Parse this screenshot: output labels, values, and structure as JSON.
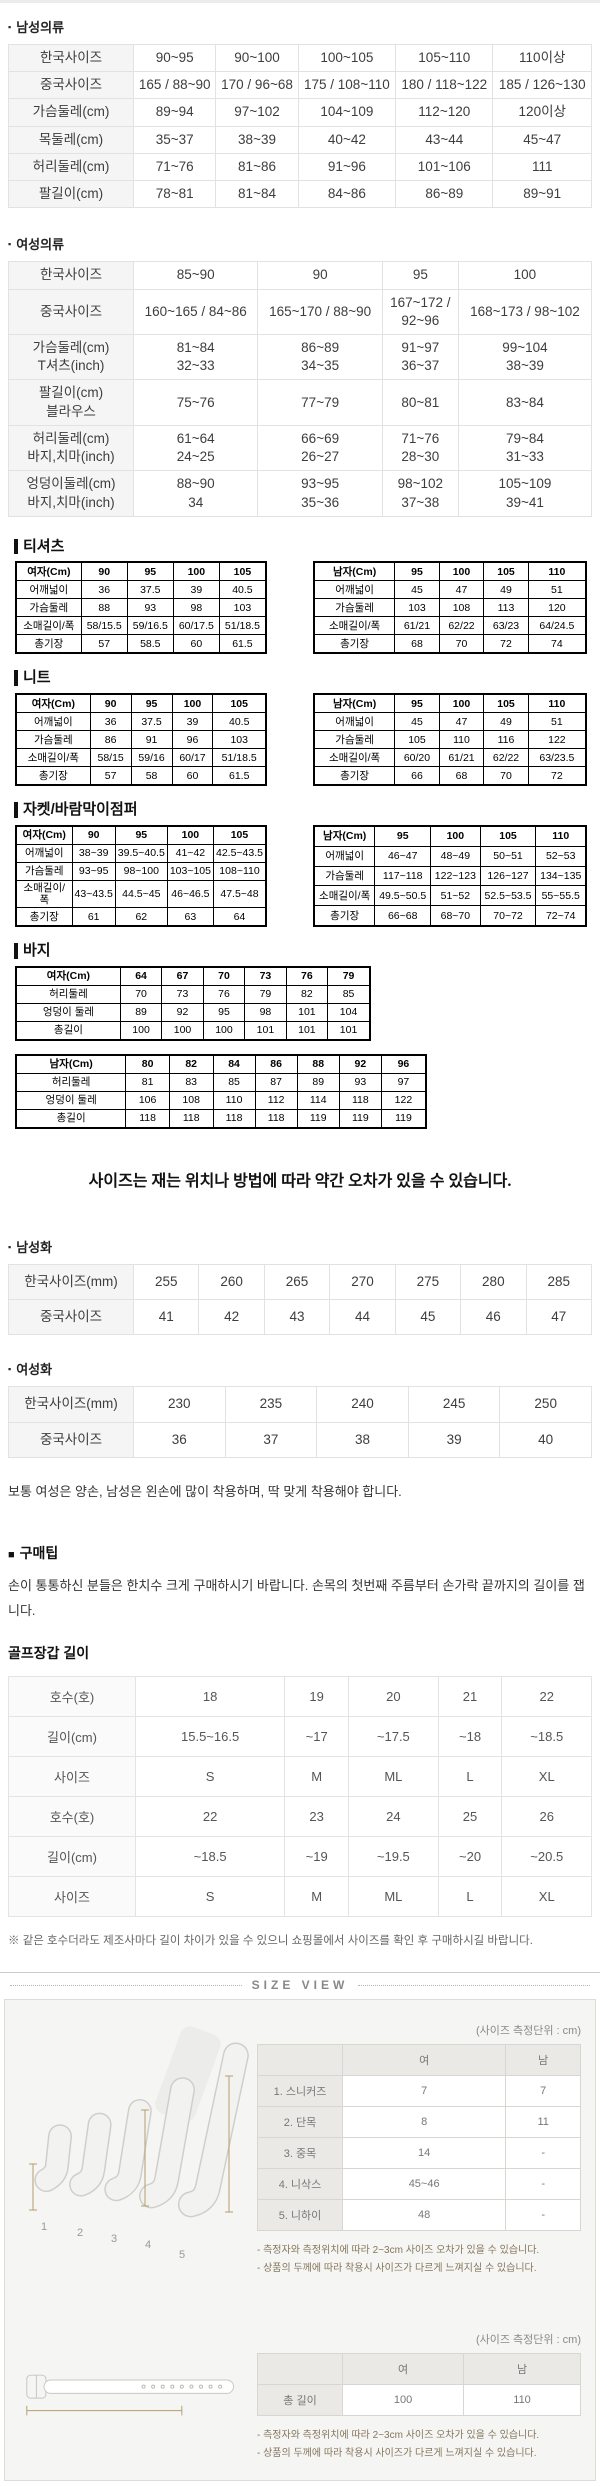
{
  "colors": {
    "accent_measure_line": "#b79d6d",
    "panel_background": "#f5f5f3",
    "label_cell_background": "#f5f5f5",
    "hard_table_border": "#000000"
  },
  "markers": {
    "bullet": "▪",
    "square": "■"
  },
  "mens_clothing": {
    "title": "남성의류",
    "table": {
      "label_col": true,
      "rows": [
        [
          "한국사이즈",
          "90~95",
          "90~100",
          "100~105",
          "105~110",
          "110이상"
        ],
        [
          "중국사이즈",
          "165 / 88~90",
          "170 / 96~68",
          "175 / 108~110",
          "180 / 118~122",
          "185 / 126~130"
        ],
        [
          "가슴둘레(cm)",
          "89~94",
          "97~102",
          "104~109",
          "112~120",
          "120이상"
        ],
        [
          "목둘레(cm)",
          "35~37",
          "38~39",
          "40~42",
          "43~44",
          "45~47"
        ],
        [
          "허리둘레(cm)",
          "71~76",
          "81~86",
          "91~96",
          "101~106",
          "111"
        ],
        [
          "팔길이(cm)",
          "78~81",
          "81~84",
          "84~86",
          "86~89",
          "89~91"
        ]
      ]
    }
  },
  "womens_clothing": {
    "title": "여성의류",
    "table": {
      "label_col": true,
      "rows": [
        [
          "한국사이즈",
          "85~90",
          "90",
          "95",
          "100"
        ],
        [
          "중국사이즈",
          "160~165 / 84~86",
          "165~170 / 88~90",
          [
            "167~172 /",
            "92~96"
          ],
          "168~173 / 98~102"
        ],
        [
          [
            "가슴둘레(cm)",
            "T셔츠(inch)"
          ],
          [
            "81~84",
            "32~33"
          ],
          [
            "86~89",
            "34~35"
          ],
          [
            "91~97",
            "36~37"
          ],
          [
            "99~104",
            "38~39"
          ]
        ],
        [
          [
            "팔길이(cm)",
            "블라우스"
          ],
          "75~76",
          "77~79",
          "80~81",
          "83~84"
        ],
        [
          [
            "허리둘레(cm)",
            "바지,치마(inch)"
          ],
          [
            "61~64",
            "24~25"
          ],
          [
            "66~69",
            "26~27"
          ],
          [
            "71~76",
            "28~30"
          ],
          [
            "79~84",
            "31~33"
          ]
        ],
        [
          [
            "엉덩이둘레(cm)",
            "바지,치마(inch)"
          ],
          [
            "88~90",
            "34"
          ],
          [
            "93~95",
            "35~36"
          ],
          [
            "98~102",
            "37~38"
          ],
          [
            "105~109",
            "39~41"
          ]
        ]
      ]
    }
  },
  "tshirt": {
    "title": "티셔츠",
    "women": {
      "header_row": true,
      "label_col": true,
      "rows": [
        [
          "여자(Cm)",
          "90",
          "95",
          "100",
          "105"
        ],
        [
          "어깨넓이",
          "36",
          "37.5",
          "39",
          "40.5"
        ],
        [
          "가슴둘레",
          "88",
          "93",
          "98",
          "103"
        ],
        [
          "소매길이/폭",
          "58/15.5",
          "59/16.5",
          "60/17.5",
          "51/18.5"
        ],
        [
          "총기장",
          "57",
          "58.5",
          "60",
          "61.5"
        ]
      ]
    },
    "men": {
      "header_row": true,
      "label_col": true,
      "rows": [
        [
          "남자(Cm)",
          "95",
          "100",
          "105",
          "110"
        ],
        [
          "어깨넓이",
          "45",
          "47",
          "49",
          "51"
        ],
        [
          "가슴둘레",
          "103",
          "108",
          "113",
          "120"
        ],
        [
          "소매길이/폭",
          "61/21",
          "62/22",
          "63/23",
          "64/24.5"
        ],
        [
          "총기장",
          "68",
          "70",
          "72",
          "74"
        ]
      ]
    }
  },
  "knit": {
    "title": "니트",
    "women": {
      "header_row": true,
      "label_col": true,
      "rows": [
        [
          "여자(Cm)",
          "90",
          "95",
          "100",
          "105"
        ],
        [
          "어깨넓이",
          "36",
          "37.5",
          "39",
          "40.5"
        ],
        [
          "가슴둘레",
          "86",
          "91",
          "96",
          "103"
        ],
        [
          "소매길이/폭",
          "58/15",
          "59/16",
          "60/17",
          "51/18.5"
        ],
        [
          "총기장",
          "57",
          "58",
          "60",
          "61.5"
        ]
      ]
    },
    "men": {
      "header_row": true,
      "label_col": true,
      "rows": [
        [
          "남자(Cm)",
          "95",
          "100",
          "105",
          "110"
        ],
        [
          "어깨넓이",
          "45",
          "47",
          "49",
          "51"
        ],
        [
          "가슴둘레",
          "105",
          "110",
          "116",
          "122"
        ],
        [
          "소매길이/폭",
          "60/20",
          "61/21",
          "62/22",
          "63/23.5"
        ],
        [
          "총기장",
          "66",
          "68",
          "70",
          "72"
        ]
      ]
    }
  },
  "jacket": {
    "title": "자켓/바람막이점퍼",
    "women": {
      "header_row": true,
      "label_col": true,
      "rows": [
        [
          "여자(Cm)",
          "90",
          "95",
          "100",
          "105"
        ],
        [
          "어깨넓이",
          "38~39",
          "39.5~40.5",
          "41~42",
          "42.5~43.5"
        ],
        [
          "가슴둘레",
          "93~95",
          "98~100",
          "103~105",
          "108~110"
        ],
        [
          "소매길이/폭",
          "43~43.5",
          "44.5~45",
          "46~46.5",
          "47.5~48"
        ],
        [
          "총기장",
          "61",
          "62",
          "63",
          "64"
        ]
      ]
    },
    "men": {
      "header_row": true,
      "label_col": true,
      "rows": [
        [
          "남자(Cm)",
          "95",
          "100",
          "105",
          "110"
        ],
        [
          "어깨넓이",
          "46~47",
          "48~49",
          "50~51",
          "52~53"
        ],
        [
          "가슴둘레",
          "117~118",
          "122~123",
          "126~127",
          "134~135"
        ],
        [
          "소매길이/폭",
          "49.5~50.5",
          "51~52",
          "52.5~53.5",
          "55~55.5"
        ],
        [
          "총기장",
          "66~68",
          "68~70",
          "70~72",
          "72~74"
        ]
      ]
    }
  },
  "pants": {
    "title": "바지",
    "women": {
      "header_row": true,
      "label_col": true,
      "rows": [
        [
          "여자(Cm)",
          "64",
          "67",
          "70",
          "73",
          "76",
          "79"
        ],
        [
          "허리둘레",
          "70",
          "73",
          "76",
          "79",
          "82",
          "85"
        ],
        [
          "엉덩이 둘레",
          "89",
          "92",
          "95",
          "98",
          "101",
          "104"
        ],
        [
          "총길이",
          "100",
          "100",
          "100",
          "101",
          "101",
          "101"
        ]
      ]
    },
    "men": {
      "header_row": true,
      "label_col": true,
      "rows": [
        [
          "남자(Cm)",
          "80",
          "82",
          "84",
          "86",
          "88",
          "92",
          "96"
        ],
        [
          "허리둘레",
          "81",
          "83",
          "85",
          "87",
          "89",
          "93",
          "97"
        ],
        [
          "엉덩이 둘레",
          "106",
          "108",
          "110",
          "112",
          "114",
          "118",
          "122"
        ],
        [
          "총길이",
          "118",
          "118",
          "118",
          "118",
          "119",
          "119",
          "119"
        ]
      ]
    }
  },
  "size_note": "사이즈는 재는 위치나 방법에 따라 약간 오차가 있을 수 있습니다.",
  "mens_shoes": {
    "title": "남성화",
    "table": {
      "label_col": true,
      "rows": [
        [
          "한국사이즈(mm)",
          "255",
          "260",
          "265",
          "270",
          "275",
          "280",
          "285"
        ],
        [
          "중국사이즈",
          "41",
          "42",
          "43",
          "44",
          "45",
          "46",
          "47"
        ]
      ]
    }
  },
  "womens_shoes": {
    "title": "여성화",
    "table": {
      "label_col": true,
      "rows": [
        [
          "한국사이즈(mm)",
          "230",
          "235",
          "240",
          "245",
          "250"
        ],
        [
          "중국사이즈",
          "36",
          "37",
          "38",
          "39",
          "40"
        ]
      ]
    }
  },
  "glove_fit_note": "보통 여성은 양손, 남성은 왼손에 많이 착용하며, 딱 맞게 착용해야 합니다.",
  "purchase_tip": {
    "title": "구매팁",
    "text": "손이 통통하신 분들은 한치수 크게 구매하시기 바랍니다. 손목의 첫번째 주름부터 손가락 끝까지의 길이를 잽니다."
  },
  "glove_length": {
    "title": "골프장갑 길이",
    "table": {
      "label_col": true,
      "rows": [
        [
          "호수(호)",
          "18",
          "19",
          "20",
          "21",
          "22"
        ],
        [
          "길이(cm)",
          "15.5~16.5",
          "~17",
          "~17.5",
          "~18",
          "~18.5"
        ],
        [
          "사이즈",
          "S",
          "M",
          "ML",
          "L",
          "XL"
        ],
        [
          "호수(호)",
          "22",
          "23",
          "24",
          "25",
          "26"
        ],
        [
          "길이(cm)",
          "~18.5",
          "~19",
          "~19.5",
          "~20",
          "~20.5"
        ],
        [
          "사이즈",
          "S",
          "M",
          "ML",
          "L",
          "XL"
        ]
      ]
    },
    "footnote": "※ 같은 호수더라도 제조사마다 길이 차이가 있을 수 있으니 쇼핑몰에서 사이즈를 확인 후 구매하시길 바랍니다."
  },
  "size_view": {
    "header": "SIZE VIEW",
    "unit_label": "(사이즈 측정단위 : cm)",
    "socks_table": {
      "header_row": true,
      "label_col": true,
      "rows": [
        [
          "",
          "여",
          "남"
        ],
        [
          "1. 스니커즈",
          "7",
          "7"
        ],
        [
          "2. 단목",
          "8",
          "11"
        ],
        [
          "3. 중목",
          "14",
          "-"
        ],
        [
          "4. 니삭스",
          "45~46",
          "-"
        ],
        [
          "5. 니하이",
          "48",
          "-"
        ]
      ]
    },
    "sock_labels": [
      "1",
      "2",
      "3",
      "4",
      "5"
    ],
    "belt_table": {
      "header_row": true,
      "label_col": true,
      "rows": [
        [
          "",
          "여",
          "남"
        ],
        [
          "총 길이",
          "100",
          "110"
        ]
      ]
    },
    "notes": [
      "- 측정자와 측정위치에 따라 2~3cm 사이즈 오차가 있을 수 있습니다.",
      "- 상품의 두께에 따라 착용시 사이즈가 다르게 느껴지실 수 있습니다."
    ]
  }
}
